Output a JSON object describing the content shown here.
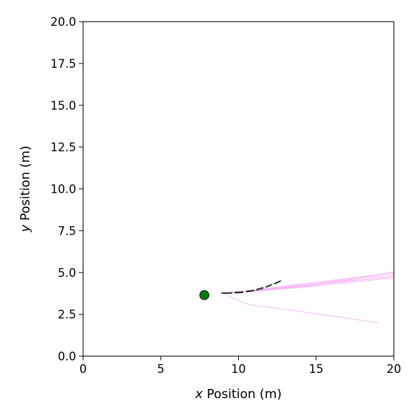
{
  "chart_data": {
    "type": "line",
    "xlabel_var": "x",
    "xlabel_rest": " Position (m)",
    "ylabel_var": "y",
    "ylabel_rest": " Position (m)",
    "xlim": [
      0,
      20
    ],
    "ylim": [
      0,
      20
    ],
    "xticks": [
      0,
      5,
      10,
      15,
      20
    ],
    "xtick_labels": [
      "0",
      "5",
      "10",
      "15",
      "20"
    ],
    "yticks": [
      0,
      2.5,
      5,
      7.5,
      10,
      12.5,
      15,
      17.5,
      20
    ],
    "ytick_labels": [
      "0.0",
      "2.5",
      "5.0",
      "7.5",
      "10.0",
      "12.5",
      "15.0",
      "17.5",
      "20.0"
    ],
    "grid": false,
    "colors": {
      "trajectories": "#f4a8f4",
      "marker_fill": "#008000",
      "marker_edge": "#000000",
      "dashed": "#000000"
    },
    "marker": {
      "x": 7.8,
      "y": 3.65
    },
    "trajectories": [
      [
        [
          9.0,
          3.78
        ],
        [
          11.0,
          3.95
        ],
        [
          14.0,
          4.3
        ],
        [
          17.0,
          4.65
        ],
        [
          20.0,
          5.0
        ]
      ],
      [
        [
          9.0,
          3.78
        ],
        [
          11.0,
          3.93
        ],
        [
          14.0,
          4.25
        ],
        [
          17.0,
          4.6
        ],
        [
          20.0,
          4.92
        ]
      ],
      [
        [
          9.0,
          3.78
        ],
        [
          11.0,
          3.92
        ],
        [
          14.0,
          4.2
        ],
        [
          17.0,
          4.5
        ],
        [
          20.0,
          4.82
        ]
      ],
      [
        [
          9.0,
          3.78
        ],
        [
          11.0,
          3.9
        ],
        [
          14.0,
          4.15
        ],
        [
          17.0,
          4.45
        ],
        [
          20.0,
          4.75
        ]
      ],
      [
        [
          9.0,
          3.78
        ],
        [
          11.0,
          3.88
        ],
        [
          14.0,
          4.1
        ],
        [
          17.0,
          4.38
        ],
        [
          20.0,
          4.68
        ]
      ],
      [
        [
          9.0,
          3.78
        ],
        [
          11.0,
          3.9
        ],
        [
          14.0,
          4.18
        ],
        [
          17.0,
          4.55
        ],
        [
          20.0,
          5.05
        ]
      ],
      [
        [
          9.0,
          3.78
        ],
        [
          9.8,
          3.4
        ],
        [
          10.8,
          3.05
        ],
        [
          13.0,
          2.8
        ],
        [
          16.0,
          2.4
        ],
        [
          19.0,
          2.0
        ]
      ]
    ],
    "dashed_segments": [
      [
        [
          8.9,
          3.75
        ],
        [
          9.6,
          3.76
        ]
      ],
      [
        [
          9.75,
          3.78
        ],
        [
          10.3,
          3.8
        ]
      ],
      [
        [
          10.5,
          3.84
        ],
        [
          11.0,
          3.9
        ]
      ],
      [
        [
          11.15,
          3.95
        ],
        [
          11.6,
          4.05
        ]
      ],
      [
        [
          11.75,
          4.1
        ],
        [
          12.15,
          4.25
        ]
      ],
      [
        [
          12.3,
          4.3
        ],
        [
          12.7,
          4.47
        ]
      ],
      [
        [
          8.9,
          3.78
        ],
        [
          9.6,
          3.79
        ]
      ],
      [
        [
          9.75,
          3.82
        ],
        [
          10.3,
          3.84
        ]
      ],
      [
        [
          10.5,
          3.88
        ],
        [
          11.0,
          3.96
        ]
      ],
      [
        [
          11.15,
          4.0
        ],
        [
          11.6,
          4.12
        ]
      ],
      [
        [
          11.75,
          4.16
        ],
        [
          12.15,
          4.3
        ]
      ],
      [
        [
          12.3,
          4.35
        ],
        [
          12.75,
          4.52
        ]
      ]
    ]
  }
}
